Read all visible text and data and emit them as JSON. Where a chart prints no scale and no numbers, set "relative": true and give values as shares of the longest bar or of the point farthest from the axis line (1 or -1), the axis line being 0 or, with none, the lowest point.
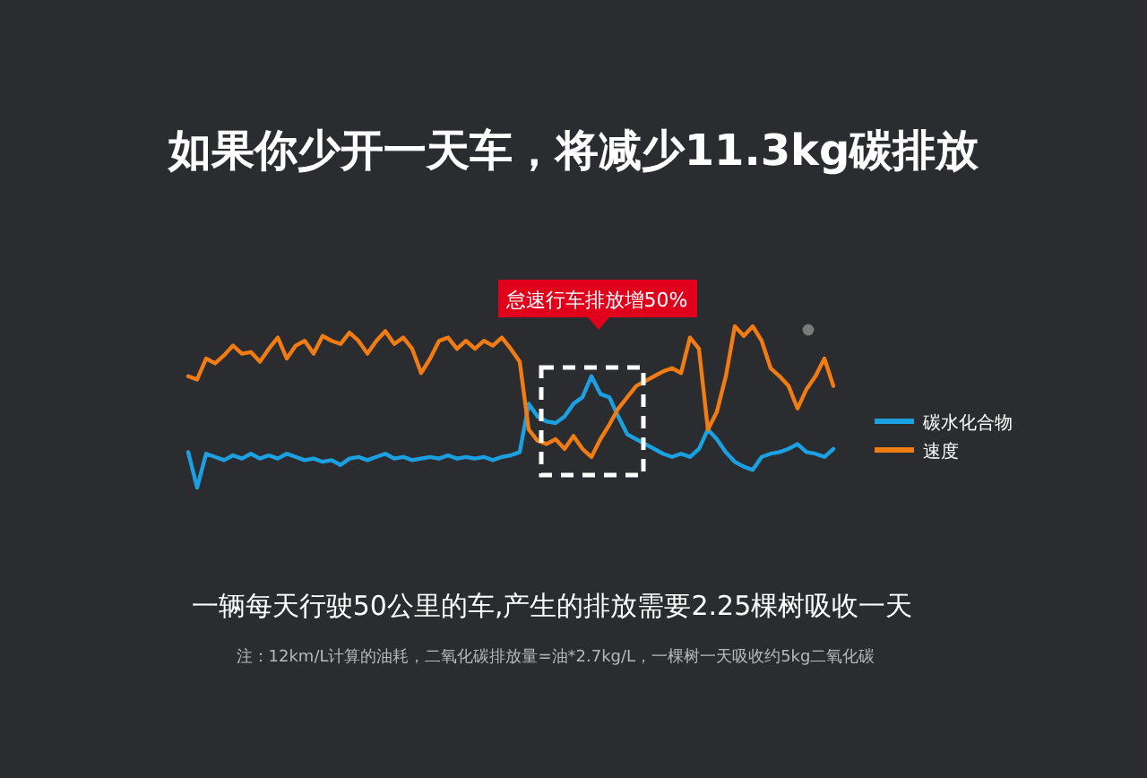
{
  "chart_data": {
    "type": "line",
    "relative": true,
    "title": "如果你少开一天车，将减少11.3kg碳排放",
    "subtitle": "一辆每天行驶50公里的车,产生的排放需要2.25棵树吸收一天",
    "annotations": [
      "怠速行车排放增50%",
      "注：12km/L计算的油耗，二氧化碳排放量=油*2.7kg/L，一棵树一天吸收约5kg二氧化碳"
    ],
    "legend": "right",
    "marker": "none",
    "line_style": "solid",
    "categories": [
      null,
      null,
      null,
      null,
      null,
      null,
      null,
      null,
      null,
      null,
      null,
      null,
      null,
      null,
      null,
      null,
      null,
      null,
      null,
      null,
      null,
      null,
      null,
      null,
      null,
      null,
      null,
      null,
      null,
      null,
      null,
      null,
      null,
      null,
      null,
      null,
      null,
      null,
      null,
      null,
      null,
      null,
      null,
      null,
      null,
      null,
      null,
      null,
      null,
      null,
      null,
      null,
      null,
      null,
      null,
      null,
      null,
      null,
      null,
      null,
      null,
      null,
      null,
      null,
      null,
      null,
      null,
      null,
      null,
      null,
      null,
      null,
      null
    ],
    "series": [
      {
        "name": "碳水化合物",
        "color": "#1ba1e2",
        "values": [
          0.22,
          0,
          0.21,
          0.19,
          0.17,
          0.2,
          0.18,
          0.21,
          0.18,
          0.2,
          0.18,
          0.21,
          0.19,
          0.17,
          0.18,
          0.16,
          0.17,
          0.14,
          0.18,
          0.19,
          0.17,
          0.19,
          0.21,
          0.18,
          0.19,
          0.17,
          0.18,
          0.19,
          0.18,
          0.2,
          0.18,
          0.19,
          0.18,
          0.19,
          0.17,
          0.19,
          0.2,
          0.22,
          0.52,
          0.44,
          0.41,
          0.4,
          0.44,
          0.52,
          0.56,
          0.69,
          0.58,
          0.56,
          0.44,
          0.33,
          0.3,
          0.27,
          0.24,
          0.21,
          0.19,
          0.21,
          0.19,
          0.24,
          0.36,
          0.3,
          0.22,
          0.16,
          0.13,
          0.11,
          0.19,
          0.21,
          0.22,
          0.24,
          0.27,
          0.22,
          0.21,
          0.19,
          0.24
        ]
      },
      {
        "name": "速度",
        "color": "#f07c13",
        "values": [
          0.69,
          0.67,
          0.8,
          0.77,
          0.82,
          0.88,
          0.83,
          0.84,
          0.78,
          0.86,
          0.93,
          0.8,
          0.88,
          0.91,
          0.83,
          0.94,
          0.91,
          0.89,
          0.96,
          0.91,
          0.83,
          0.91,
          0.97,
          0.89,
          0.93,
          0.86,
          0.71,
          0.8,
          0.91,
          0.93,
          0.86,
          0.91,
          0.86,
          0.91,
          0.88,
          0.93,
          0.86,
          0.78,
          0.36,
          0.29,
          0.27,
          0.3,
          0.24,
          0.32,
          0.24,
          0.19,
          0.3,
          0.39,
          0.49,
          0.56,
          0.63,
          0.66,
          0.69,
          0.72,
          0.74,
          0.71,
          0.93,
          0.86,
          0.36,
          0.47,
          0.69,
          1,
          0.94,
          1,
          0.91,
          0.74,
          0.69,
          0.63,
          0.49,
          0.61,
          0.69,
          0.8,
          0.63
        ]
      }
    ]
  }
}
